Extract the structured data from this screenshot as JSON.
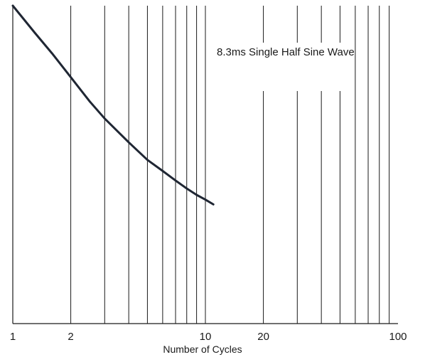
{
  "chart_data": {
    "type": "line",
    "title": "",
    "xlabel": "Number of Cycles",
    "ylabel": "",
    "x_scale": "log",
    "xlim": [
      1,
      100
    ],
    "x_ticks": [
      1,
      2,
      10,
      20,
      100
    ],
    "x_tick_labels": [
      "1",
      "2",
      "10",
      "20",
      "100"
    ],
    "x_gridlines": [
      2,
      3,
      4,
      5,
      6,
      7,
      8,
      9,
      10,
      20,
      30,
      40,
      50,
      60,
      70,
      80,
      90
    ],
    "grid": "vertical",
    "y_relative_range": [
      0,
      1
    ],
    "annotation": "8.3ms Single Half Sine Wave",
    "series": [
      {
        "x": [
          1,
          1.3,
          1.6,
          2,
          2.5,
          3,
          4,
          5,
          6,
          7,
          8,
          9,
          10,
          11
        ],
        "values": [
          1.0,
          0.915,
          0.85,
          0.775,
          0.7,
          0.645,
          0.57,
          0.515,
          0.48,
          0.45,
          0.425,
          0.405,
          0.39,
          0.375
        ]
      }
    ],
    "line_color": "#1f2633",
    "grid_color": "#1a1a1a"
  }
}
